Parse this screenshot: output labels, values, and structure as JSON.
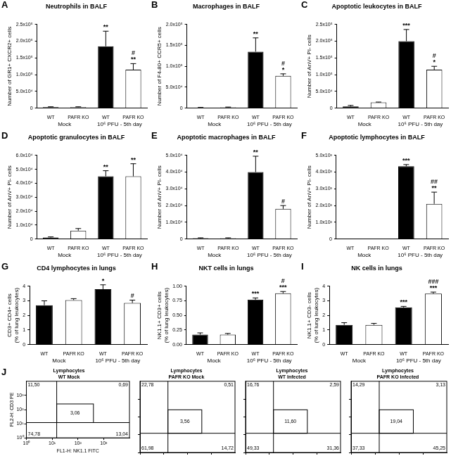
{
  "chart_data": [
    {
      "type": "bar",
      "panel": "A",
      "title": "Neutrophils in BALF",
      "y_label": "Number of GR1+ CXCR2+ cells",
      "categories": [
        "WT",
        "PAFR KO",
        "WT",
        "PAFR KO"
      ],
      "groups": [
        "Mock",
        "10⁶ PFU - 5th day"
      ],
      "values": [
        3000,
        3000,
        185000,
        115000
      ],
      "errors": [
        1000,
        1000,
        45000,
        18000
      ],
      "colors": [
        "#000000",
        "#ffffff",
        "#000000",
        "#ffffff"
      ],
      "significance": [
        [],
        [],
        [
          "**"
        ],
        [
          "#",
          "**"
        ]
      ],
      "ylim": [
        0,
        250000
      ],
      "yticks": [
        0,
        {
          "value": 50000,
          "label": "5.0x10⁴"
        },
        {
          "value": 100000,
          "label": "1.0x10⁵"
        },
        {
          "value": 150000,
          "label": "1.5x10⁵"
        },
        {
          "value": 200000,
          "label": "2.0x10⁵"
        },
        {
          "value": 250000,
          "label": "2.5x10⁵"
        }
      ]
    },
    {
      "type": "bar",
      "panel": "B",
      "title": "Macrophages in BALF",
      "y_label": "Number of F4-80+ CCR5+ cells",
      "categories": [
        "WT",
        "PAFR KO",
        "WT",
        "PAFR KO"
      ],
      "groups": [
        "Mock",
        "10⁶ PFU - 5th day"
      ],
      "values": [
        1000,
        2000,
        135000,
        77000
      ],
      "errors": [
        500,
        500,
        33000,
        5000
      ],
      "colors": [
        "#000000",
        "#ffffff",
        "#000000",
        "#ffffff"
      ],
      "significance": [
        [],
        [],
        [
          "**"
        ],
        [
          "#",
          "*"
        ]
      ],
      "ylim": [
        0,
        200000
      ],
      "yticks": [
        0,
        {
          "value": 50000,
          "label": "5.0x10⁴"
        },
        {
          "value": 100000,
          "label": "1.0x10⁵"
        },
        {
          "value": 150000,
          "label": "1.5x10⁵"
        },
        {
          "value": 200000,
          "label": "2.0x10⁵"
        }
      ]
    },
    {
      "type": "bar",
      "panel": "C",
      "title": "Apoptotic leukocytes in BALF",
      "y_label": "Number of AnV+ PI- cells",
      "categories": [
        "WT",
        "PAFR KO",
        "WT",
        "PAFR KO"
      ],
      "groups": [
        "Mock",
        "10⁶ PFU - 5th day"
      ],
      "values": [
        5000,
        17000,
        200000,
        115000
      ],
      "errors": [
        3000,
        1000,
        35000,
        10000
      ],
      "colors": [
        "#000000",
        "#ffffff",
        "#000000",
        "#ffffff"
      ],
      "significance": [
        [],
        [],
        [
          "***"
        ],
        [
          "#",
          "*"
        ]
      ],
      "ylim": [
        0,
        250000
      ],
      "yticks": [
        0,
        {
          "value": 50000,
          "label": "5.0x10⁴"
        },
        {
          "value": 100000,
          "label": "1.0x10⁵"
        },
        {
          "value": 150000,
          "label": "1.5x10⁵"
        },
        {
          "value": 200000,
          "label": "2.0x10⁵"
        },
        {
          "value": 250000,
          "label": "2.5x10⁵"
        }
      ]
    },
    {
      "type": "bar",
      "panel": "D",
      "title": "Apoptotic granulocytes in BALF",
      "y_label": "Number of AnV+ PI- cells",
      "categories": [
        "WT",
        "PAFR KO",
        "WT",
        "PAFR KO"
      ],
      "groups": [
        "Mock",
        "10⁶ PFU - 5th day"
      ],
      "values": [
        1000,
        6000,
        45000,
        45000
      ],
      "errors": [
        500,
        1500,
        4000,
        9000
      ],
      "colors": [
        "#000000",
        "#ffffff",
        "#000000",
        "#ffffff"
      ],
      "significance": [
        [],
        [],
        [
          "**"
        ],
        [
          "**"
        ]
      ],
      "ylim": [
        0,
        60000
      ],
      "yticks": [
        0,
        {
          "value": 10000,
          "label": "1.0x10⁴"
        },
        {
          "value": 20000,
          "label": "2.0x10⁴"
        },
        {
          "value": 30000,
          "label": "3.0x10⁴"
        },
        {
          "value": 40000,
          "label": "4.0x10⁴"
        },
        {
          "value": 50000,
          "label": "5.0x10⁴"
        },
        {
          "value": 60000,
          "label": "6.0x10⁴"
        }
      ]
    },
    {
      "type": "bar",
      "panel": "E",
      "title": "Apoptotic macrophages in BALF",
      "y_label": "Number of AnV+ PI- cells",
      "categories": [
        "WT",
        "PAFR KO",
        "WT",
        "PAFR KO"
      ],
      "groups": [
        "Mock",
        "10⁶ PFU - 5th day"
      ],
      "values": [
        500,
        500,
        40000,
        18000
      ],
      "errors": [
        200,
        200,
        9500,
        2000
      ],
      "colors": [
        "#000000",
        "#ffffff",
        "#000000",
        "#ffffff"
      ],
      "significance": [
        [],
        [],
        [
          "**"
        ],
        [
          "#"
        ]
      ],
      "ylim": [
        0,
        50000
      ],
      "yticks": [
        0,
        {
          "value": 10000,
          "label": "1.0x10⁴"
        },
        {
          "value": 20000,
          "label": "2.0x10⁴"
        },
        {
          "value": 30000,
          "label": "3.0x10⁴"
        },
        {
          "value": 40000,
          "label": "4.0x10⁴"
        },
        {
          "value": 50000,
          "label": "5.0x10⁴"
        }
      ]
    },
    {
      "type": "bar",
      "panel": "F",
      "title": "Apoptotic lymphocytes in BALF",
      "y_label": "Number of AnV+ PI- cells",
      "categories": [
        "WT",
        "PAFR KO",
        "WT",
        "PAFR KO"
      ],
      "groups": [
        "Mock",
        "10⁶ PFU - 5th day"
      ],
      "values": [
        0,
        0,
        4350,
        2100
      ],
      "errors": [
        0,
        0,
        100,
        700
      ],
      "colors": [
        "#000000",
        "#ffffff",
        "#000000",
        "#ffffff"
      ],
      "significance": [
        [],
        [],
        [
          "***"
        ],
        [
          "##",
          "**"
        ]
      ],
      "ylim": [
        0,
        5000
      ],
      "yticks": [
        0,
        {
          "value": 1000,
          "label": "1.0x10³"
        },
        {
          "value": 2000,
          "label": "2.0x10³"
        },
        {
          "value": 3000,
          "label": "3.0x10³"
        },
        {
          "value": 4000,
          "label": "4.0x10³"
        },
        {
          "value": 5000,
          "label": "5.0x10³"
        }
      ]
    },
    {
      "type": "bar",
      "panel": "G",
      "title": "CD4 lymphocytes in lungs",
      "y_label": [
        "CD3+ CD4+ cells",
        "(% of lung leukocytes)"
      ],
      "categories": [
        "WT",
        "PAFR KO",
        "WT",
        "PAFR KO"
      ],
      "groups": [
        "Mock",
        "10⁶ PFU - 5th day"
      ],
      "values": [
        2.7,
        3.05,
        3.8,
        2.85
      ],
      "errors": [
        0.3,
        0.1,
        0.3,
        0.2
      ],
      "colors": [
        "#000000",
        "#ffffff",
        "#000000",
        "#ffffff"
      ],
      "significance": [
        [],
        [],
        [
          "*"
        ],
        [
          "#"
        ]
      ],
      "ylim": [
        0,
        4
      ],
      "yticks": [
        0,
        1,
        2,
        3,
        4
      ]
    },
    {
      "type": "bar",
      "panel": "H",
      "title": "NKT cells in lungs",
      "y_label": [
        "NK1.1+ CD3+ cells",
        "(% of lung leukocytes)"
      ],
      "categories": [
        "WT",
        "PAFR KO",
        "WT",
        "PAFR KO"
      ],
      "groups": [
        "Mock",
        "10⁶ PFU - 5th day"
      ],
      "values": [
        0.17,
        0.17,
        0.77,
        0.88
      ],
      "errors": [
        0.03,
        0.02,
        0.03,
        0.03
      ],
      "colors": [
        "#000000",
        "#ffffff",
        "#000000",
        "#ffffff"
      ],
      "significance": [
        [],
        [],
        [
          "***"
        ],
        [
          "#",
          "***"
        ]
      ],
      "ylim": [
        0,
        1
      ],
      "yticks": [
        {
          "value": 0,
          "label": "0.00"
        },
        0.25,
        {
          "value": 0.5,
          "label": "0.50"
        },
        0.75,
        {
          "value": 1,
          "label": "1.00"
        }
      ]
    },
    {
      "type": "bar",
      "panel": "I",
      "title": "NK cells in lungs",
      "y_label": [
        "NK1.1+ CD3- cells",
        "(% of lung leukocytes)"
      ],
      "categories": [
        "WT",
        "PAFR KO",
        "WT",
        "PAFR KO"
      ],
      "groups": [
        "Mock",
        "10⁶ PFU - 5th day"
      ],
      "values": [
        1.35,
        1.35,
        2.55,
        3.5
      ],
      "errors": [
        0.15,
        0.1,
        0.07,
        0.1
      ],
      "colors": [
        "#000000",
        "#ffffff",
        "#000000",
        "#ffffff"
      ],
      "significance": [
        [],
        [],
        [
          "***"
        ],
        [
          "###",
          "***"
        ]
      ],
      "ylim": [
        0,
        4
      ],
      "yticks": [
        0,
        1,
        2,
        3,
        4
      ]
    },
    {
      "type": "scatter",
      "panel": "J",
      "title": [
        "Lymphocytes",
        "WT Mock"
      ],
      "x_label": "FL1-H: NK1.1 FITC",
      "y_label": "FL2-H: CD3 PE",
      "log": true,
      "xlim": [
        1,
        10000
      ],
      "ylim": [
        1,
        10000
      ],
      "xticks": [
        {
          "value": 1,
          "label": "10⁰"
        },
        {
          "value": 10,
          "label": "10¹"
        },
        {
          "value": 100,
          "label": "10²"
        },
        {
          "value": 1000,
          "label": "10³"
        }
      ],
      "yticks": [
        {
          "value": 1,
          "label": "10⁰"
        },
        {
          "value": 10,
          "label": "10¹"
        },
        {
          "value": 100,
          "label": "10²"
        },
        {
          "value": 1000,
          "label": "10³"
        }
      ],
      "gates": {
        "x": 15,
        "y": 12
      },
      "box": {
        "x": [
          15,
          400
        ],
        "y": [
          12,
          250
        ]
      },
      "quadrants": {
        "upper_left": {
          "value": 11.5,
          "label": "11,50"
        },
        "upper_right": {
          "value": 0.69,
          "label": "0,69"
        },
        "lower_left": {
          "value": 74.78,
          "label": "74,78"
        },
        "lower_right": {
          "value": 13.04,
          "label": "13,04"
        }
      },
      "box_value": {
        "value": 3.06,
        "label": "3,06"
      }
    },
    {
      "type": "scatter",
      "title": [
        "Lymphocytes",
        "PAFR KO Mock"
      ],
      "tick_labels": false,
      "log": true,
      "xlim": [
        1,
        10000
      ],
      "ylim": [
        1,
        10000
      ],
      "xticks": [
        1,
        10,
        100,
        1000
      ],
      "yticks": [
        1,
        10,
        100,
        1000
      ],
      "gates": {
        "x": 15,
        "y": 12
      },
      "box": {
        "x": [
          15,
          400
        ],
        "y": [
          12,
          250
        ]
      },
      "quadrants": {
        "upper_left": {
          "value": 22.78,
          "label": "22,78"
        },
        "upper_right": {
          "value": 0.51,
          "label": "0,51"
        },
        "lower_left": {
          "value": 61.98,
          "label": "61,98"
        },
        "lower_right": {
          "value": 14.72,
          "label": "14,72"
        }
      },
      "box_value": {
        "value": 3.56,
        "label": "3,56"
      }
    },
    {
      "type": "scatter",
      "title": [
        "Lymphocytes",
        "WT Infected"
      ],
      "tick_labels": false,
      "log": true,
      "xlim": [
        1,
        10000
      ],
      "ylim": [
        1,
        10000
      ],
      "xticks": [
        1,
        10,
        100,
        1000
      ],
      "yticks": [
        1,
        10,
        100,
        1000
      ],
      "gates": {
        "x": 15,
        "y": 12
      },
      "box": {
        "x": [
          15,
          400
        ],
        "y": [
          12,
          250
        ]
      },
      "quadrants": {
        "upper_left": {
          "value": 16.76,
          "label": "16,76"
        },
        "upper_right": {
          "value": 2.59,
          "label": "2,59"
        },
        "lower_left": {
          "value": 49.33,
          "label": "49,33"
        },
        "lower_right": {
          "value": 31.36,
          "label": "31,36"
        }
      },
      "box_value": {
        "value": 11.6,
        "label": "11,60"
      }
    },
    {
      "type": "scatter",
      "title": [
        "Lymphocytes",
        "PAFR KO Infected"
      ],
      "tick_labels": false,
      "log": true,
      "xlim": [
        1,
        10000
      ],
      "ylim": [
        1,
        10000
      ],
      "xticks": [
        1,
        10,
        100,
        1000
      ],
      "yticks": [
        1,
        10,
        100,
        1000
      ],
      "gates": {
        "x": 15,
        "y": 12
      },
      "box": {
        "x": [
          15,
          400
        ],
        "y": [
          12,
          250
        ]
      },
      "quadrants": {
        "upper_left": {
          "value": 14.29,
          "label": "14,29"
        },
        "upper_right": {
          "value": 3.13,
          "label": "3,13"
        },
        "lower_left": {
          "value": 37.33,
          "label": "37,33"
        },
        "lower_right": {
          "value": 45.25,
          "label": "45,25"
        }
      },
      "box_value": {
        "value": 19.04,
        "label": "19,04"
      }
    }
  ]
}
